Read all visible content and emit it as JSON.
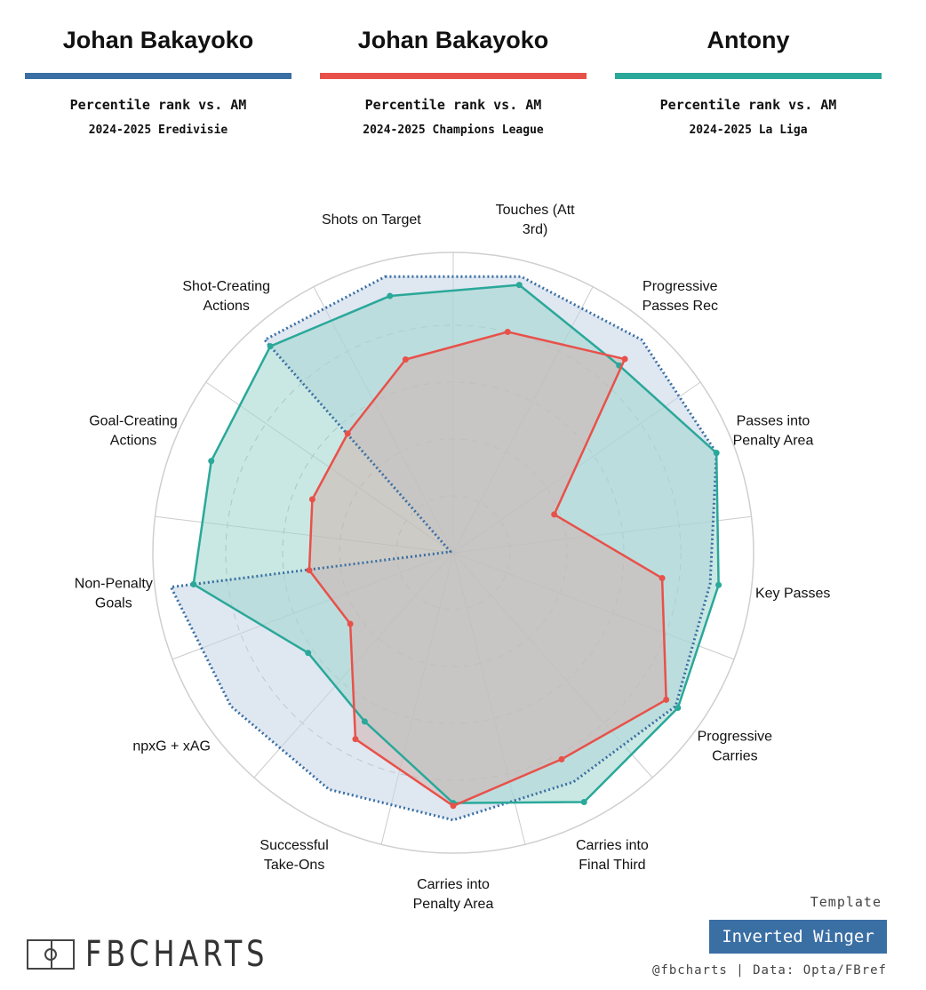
{
  "players": [
    {
      "name": "Johan Bakayoko",
      "rank_label": "Percentile rank vs. AM",
      "season": "2024-2025 Eredivisie",
      "color": "#3a6fa4"
    },
    {
      "name": "Johan Bakayoko",
      "rank_label": "Percentile rank vs. AM",
      "season": "2024-2025 Champions League",
      "color": "#e8514a"
    },
    {
      "name": "Antony",
      "rank_label": "Percentile rank vs. AM",
      "season": "2024-2025 La Liga",
      "color": "#2aa89a"
    }
  ],
  "footer": {
    "template_label": "Template",
    "template_name": "Inverted Winger",
    "credit": "@fbcharts | Data: Opta/FBref",
    "logo_text": "FBCHARTS"
  },
  "chart_data": {
    "type": "radar",
    "rmax": 100,
    "grid": true,
    "categories": [
      {
        "label": [
          "Shots on Target"
        ]
      },
      {
        "label": [
          "Touches (Att",
          "3rd)"
        ]
      },
      {
        "label": [
          "Progressive",
          "Passes Rec"
        ]
      },
      {
        "label": [
          "Passes into",
          "Penalty Area"
        ]
      },
      {
        "label": [
          "Key Passes"
        ]
      },
      {
        "label": [
          "Progressive",
          "Carries"
        ]
      },
      {
        "label": [
          "Carries into",
          "Final Third"
        ]
      },
      {
        "label": [
          "Carries into",
          "Penalty Area"
        ]
      },
      {
        "label": [
          "Successful",
          "Take-Ons"
        ]
      },
      {
        "label": [
          "npxG + xAG"
        ]
      },
      {
        "label": [
          "Non-Penalty",
          "Goals"
        ]
      },
      {
        "label": [
          "Goal-Creating",
          "Actions"
        ]
      },
      {
        "label": [
          "Shot-Creating",
          "Actions"
        ]
      }
    ],
    "series": [
      {
        "name": "Johan Bakayoko",
        "color": "#3a6fa4",
        "fill": "#c5d3e6",
        "style": "dotted",
        "values": [
          100,
          100,
          100,
          99,
          91,
          95,
          91,
          94,
          94,
          95,
          100,
          1,
          100
        ]
      },
      {
        "name": "Johan Bakayoko",
        "color": "#e8514a",
        "fill": "#d0b2ae",
        "style": "solid",
        "values": [
          70,
          80,
          91,
          38,
          74,
          91,
          82,
          89,
          74,
          44,
          51,
          53,
          56
        ]
      },
      {
        "name": "Antony",
        "color": "#2aa89a",
        "fill": "#9fd6cc",
        "style": "solid",
        "values": [
          93,
          97,
          88,
          99,
          94,
          96,
          99,
          88,
          67,
          62,
          92,
          91,
          97
        ]
      }
    ]
  }
}
